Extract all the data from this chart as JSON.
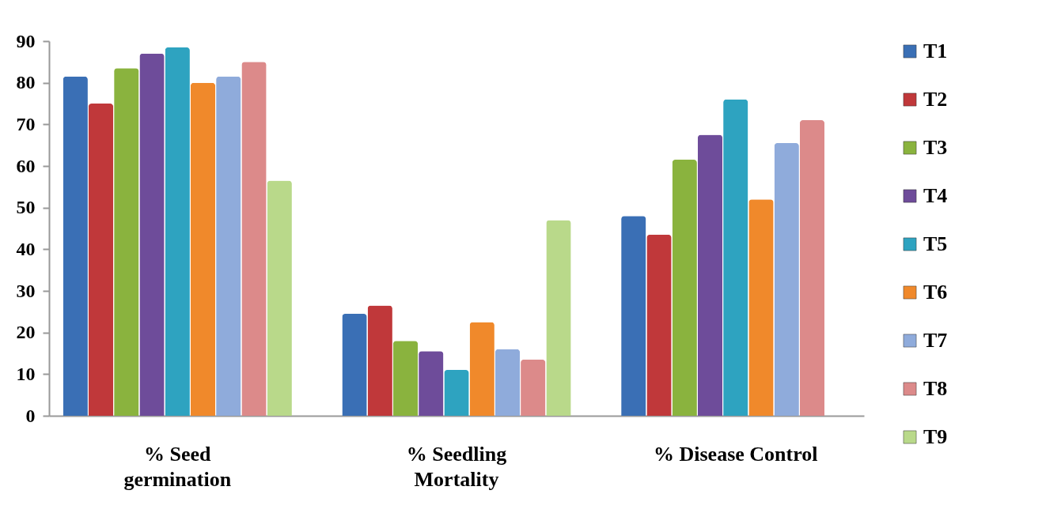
{
  "chart_data": {
    "type": "bar",
    "categories": [
      "% Seed germination",
      "% Seedling Mortality",
      "% Disease Control"
    ],
    "series": [
      {
        "name": "T1",
        "color": "#3a6fb5",
        "values": [
          81.5,
          24.5,
          48
        ]
      },
      {
        "name": "T2",
        "color": "#c0383a",
        "values": [
          75,
          26.5,
          43.5
        ]
      },
      {
        "name": "T3",
        "color": "#8ab33e",
        "values": [
          83.5,
          18,
          61.5
        ]
      },
      {
        "name": "T4",
        "color": "#6e4c9a",
        "values": [
          87,
          15.5,
          67.5
        ]
      },
      {
        "name": "T5",
        "color": "#2ea3c0",
        "values": [
          88.5,
          11,
          76
        ]
      },
      {
        "name": "T6",
        "color": "#f0892b",
        "values": [
          80,
          22.5,
          52
        ]
      },
      {
        "name": "T7",
        "color": "#8fabdb",
        "values": [
          81.5,
          16,
          65.5
        ]
      },
      {
        "name": "T8",
        "color": "#dc8a8a",
        "values": [
          85,
          13.5,
          71
        ]
      },
      {
        "name": "T9",
        "color": "#b9d98a",
        "values": [
          56.5,
          47,
          null
        ]
      }
    ],
    "ylim": [
      0,
      90
    ],
    "yticks": [
      0,
      10,
      20,
      30,
      40,
      50,
      60,
      70,
      80,
      90
    ],
    "grid": false,
    "legend": "right"
  }
}
